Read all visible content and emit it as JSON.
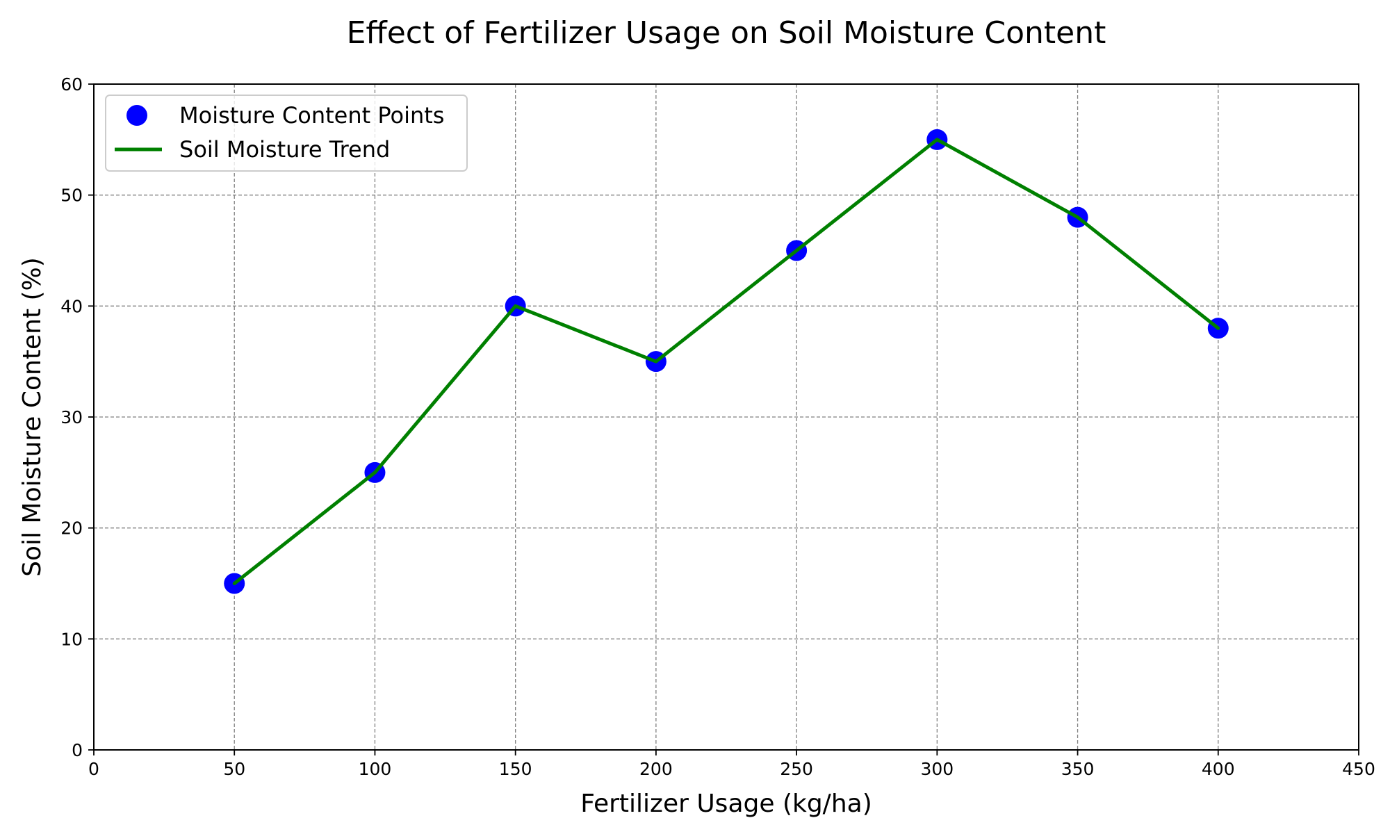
{
  "chart_data": {
    "type": "line",
    "title": "Effect of Fertilizer Usage on Soil Moisture Content",
    "xlabel": "Fertilizer Usage (kg/ha)",
    "ylabel": "Soil Moisture Content (%)",
    "xlim": [
      0,
      450
    ],
    "ylim": [
      0,
      60
    ],
    "xticks": [
      0,
      50,
      100,
      150,
      200,
      250,
      300,
      350,
      400,
      450
    ],
    "yticks": [
      0,
      10,
      20,
      30,
      40,
      50,
      60
    ],
    "xtick_labels": [
      "0",
      "50",
      "100",
      "150",
      "200",
      "250",
      "300",
      "350",
      "400",
      "450"
    ],
    "ytick_labels": [
      "0",
      "10",
      "20",
      "30",
      "40",
      "50",
      "60"
    ],
    "grid": true,
    "legend_position": "top-left",
    "x": [
      50,
      100,
      150,
      200,
      250,
      300,
      350,
      400
    ],
    "series": [
      {
        "name": "Moisture Content Points",
        "kind": "scatter",
        "color": "#0000ff",
        "values": [
          15,
          25,
          40,
          35,
          45,
          55,
          48,
          38
        ]
      },
      {
        "name": "Soil Moisture Trend",
        "kind": "line",
        "color": "#008000",
        "values": [
          15,
          25,
          40,
          35,
          45,
          55,
          48,
          38
        ]
      }
    ]
  }
}
